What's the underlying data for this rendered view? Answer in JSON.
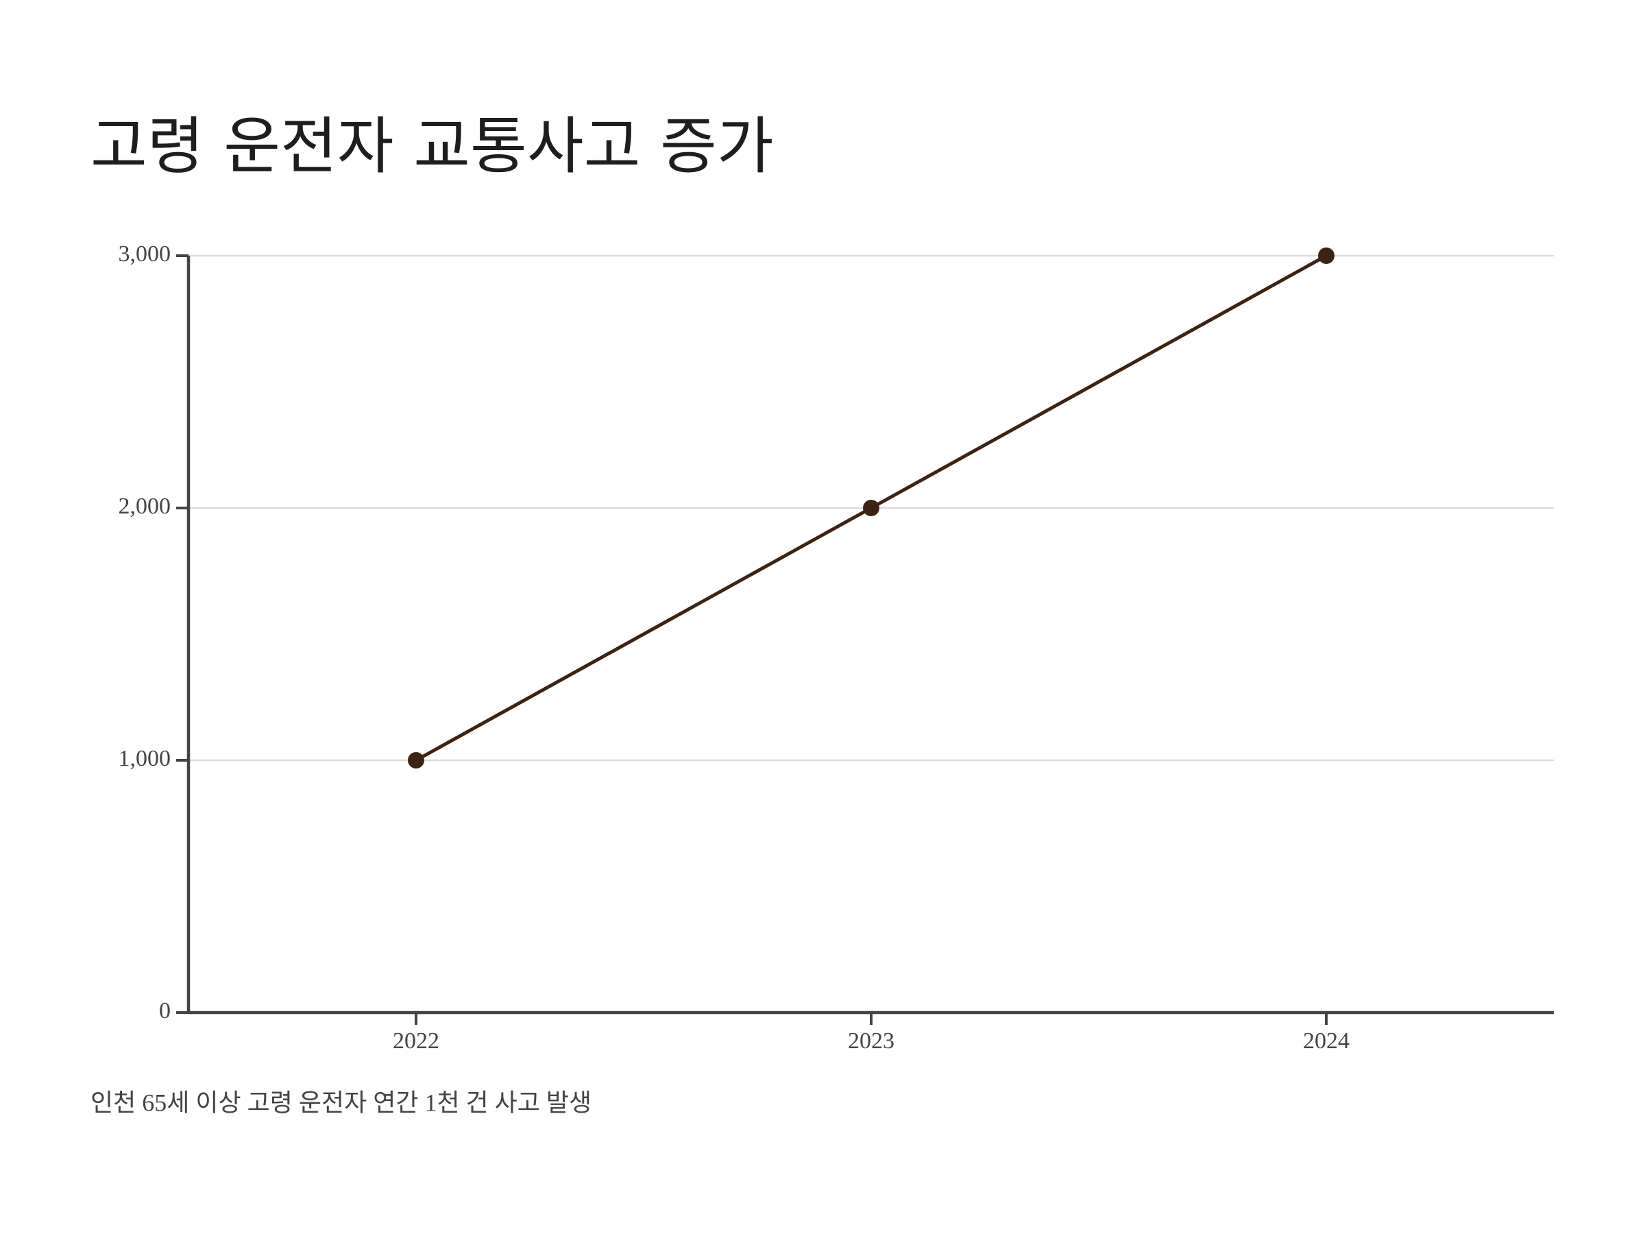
{
  "chart_data": {
    "type": "line",
    "title": "고령 운전자 교통사고 증가",
    "caption": "인천 65세 이상 고령 운전자 연간 1천 건 사고 발생",
    "categories": [
      "2022",
      "2023",
      "2024"
    ],
    "values": [
      1000,
      2000,
      3000
    ],
    "color": "#3d2314",
    "ylim": [
      0,
      3000
    ],
    "yticks": [
      0,
      {
        "value": 1000,
        "label": "1,000"
      },
      {
        "value": 2000,
        "label": "2,000"
      },
      {
        "value": 3000,
        "label": "3,000"
      }
    ],
    "grid": true
  }
}
